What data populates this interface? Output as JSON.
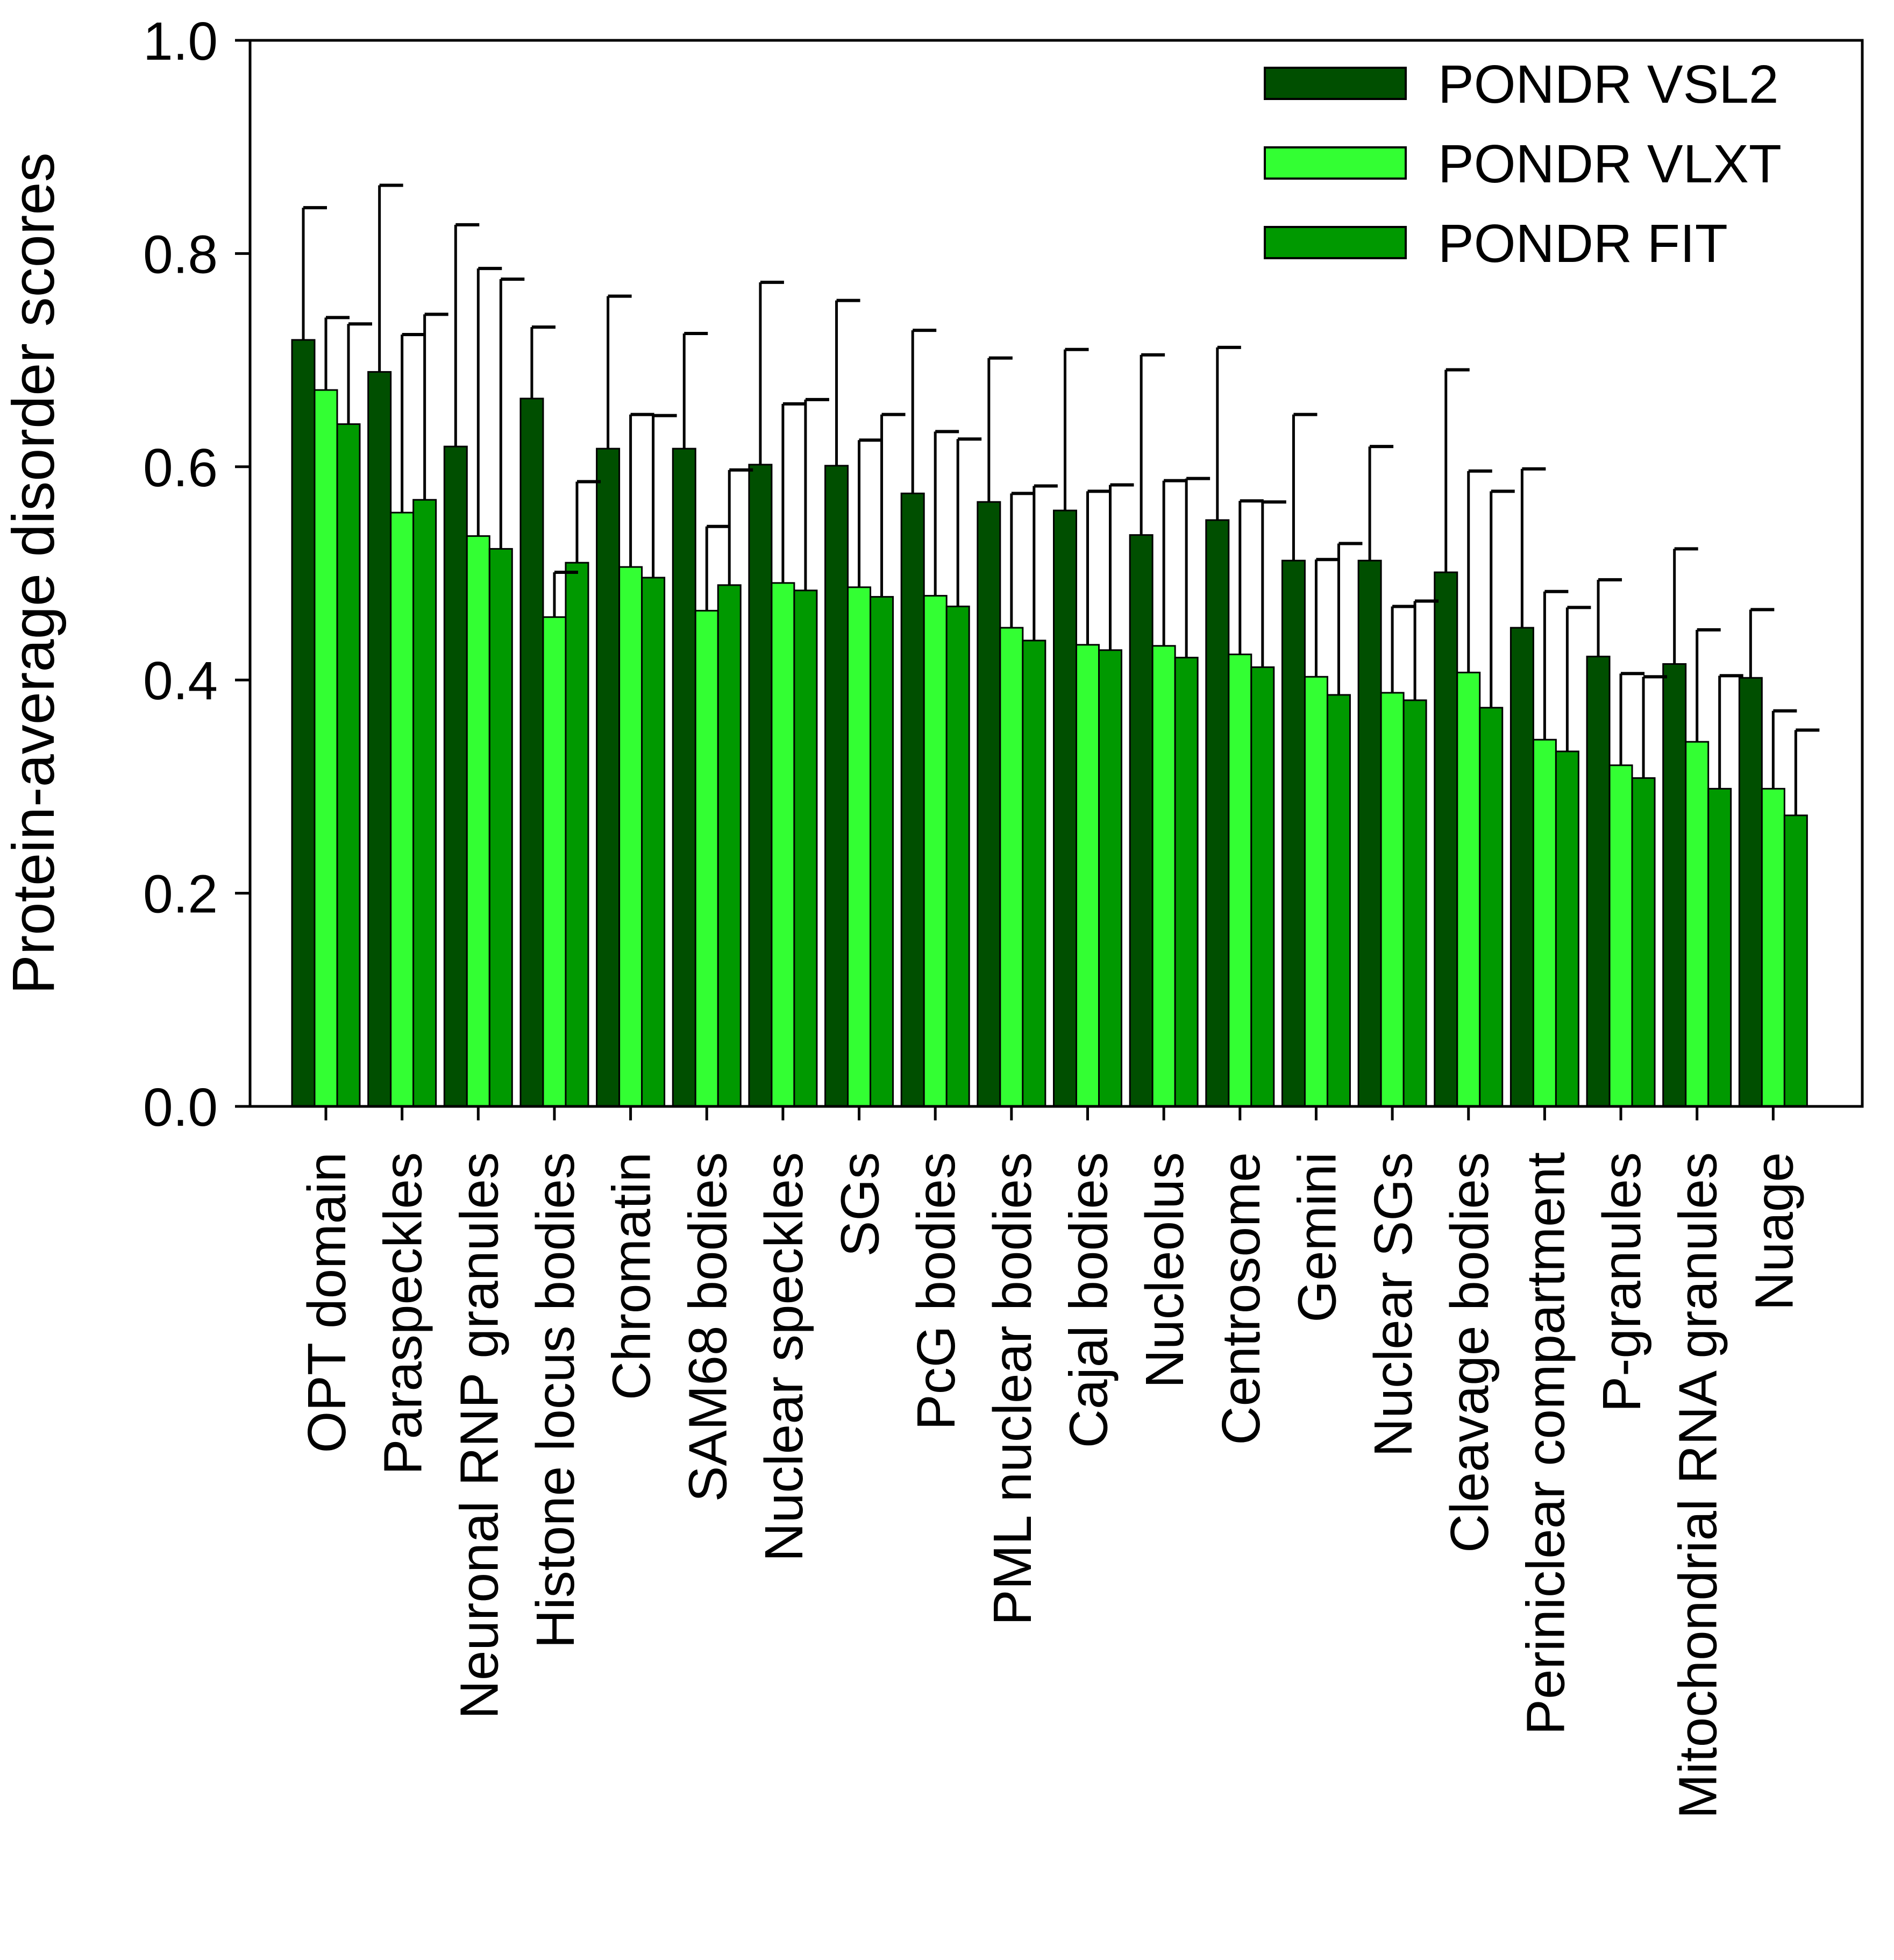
{
  "chart_data": {
    "type": "bar",
    "title": "",
    "xlabel": "",
    "ylabel": "Protein-average disorder scores",
    "ylim": [
      0.0,
      1.0
    ],
    "yticks": [
      "0.0",
      "0.2",
      "0.4",
      "0.6",
      "0.8",
      "1.0"
    ],
    "ytick_values": [
      0.0,
      0.2,
      0.4,
      0.6,
      0.8,
      1.0
    ],
    "grid": false,
    "legend_position": "top-right",
    "error_bars": "upper",
    "categories": [
      "OPT domain",
      "Paraspeckles",
      "Neuronal RNP granules",
      "Histone locus bodies",
      "Chromatin",
      "SAM68 bodies",
      "Nuclear speckles",
      "SGs",
      "PcG bodies",
      "PML nuclear bodies",
      "Cajal bodies",
      "Nucleolus",
      "Centrosome",
      "Gemini",
      "Nuclear SGs",
      "Cleavage bodies",
      "Periniclear compartment",
      "P-granules",
      "Mitochondrial RNA granules",
      "Nuage"
    ],
    "series": [
      {
        "name": "PONDR VSL2",
        "color": "#004f00",
        "values": [
          0.719,
          0.689,
          0.619,
          0.664,
          0.617,
          0.617,
          0.602,
          0.601,
          0.575,
          0.567,
          0.559,
          0.536,
          0.55,
          0.512,
          0.512,
          0.501,
          0.449,
          0.422,
          0.415,
          0.402
        ],
        "errors": [
          0.124,
          0.175,
          0.208,
          0.067,
          0.143,
          0.108,
          0.171,
          0.155,
          0.153,
          0.135,
          0.151,
          0.169,
          0.162,
          0.137,
          0.107,
          0.19,
          0.149,
          0.072,
          0.108,
          0.064
        ]
      },
      {
        "name": "PONDR VLXT",
        "color": "#33ff33",
        "values": [
          0.672,
          0.557,
          0.535,
          0.459,
          0.506,
          0.465,
          0.491,
          0.487,
          0.479,
          0.449,
          0.433,
          0.432,
          0.424,
          0.403,
          0.388,
          0.407,
          0.344,
          0.32,
          0.342,
          0.298
        ],
        "errors": [
          0.068,
          0.167,
          0.251,
          0.042,
          0.143,
          0.079,
          0.168,
          0.138,
          0.154,
          0.126,
          0.144,
          0.155,
          0.144,
          0.11,
          0.081,
          0.189,
          0.139,
          0.086,
          0.105,
          0.073
        ]
      },
      {
        "name": "PONDR FIT",
        "color": "#009900",
        "values": [
          0.64,
          0.569,
          0.523,
          0.51,
          0.496,
          0.489,
          0.484,
          0.478,
          0.469,
          0.437,
          0.428,
          0.421,
          0.412,
          0.386,
          0.381,
          0.374,
          0.333,
          0.308,
          0.298,
          0.273
        ],
        "errors": [
          0.094,
          0.174,
          0.253,
          0.076,
          0.152,
          0.108,
          0.179,
          0.171,
          0.157,
          0.145,
          0.155,
          0.168,
          0.155,
          0.142,
          0.093,
          0.203,
          0.135,
          0.095,
          0.106,
          0.08
        ]
      }
    ]
  }
}
